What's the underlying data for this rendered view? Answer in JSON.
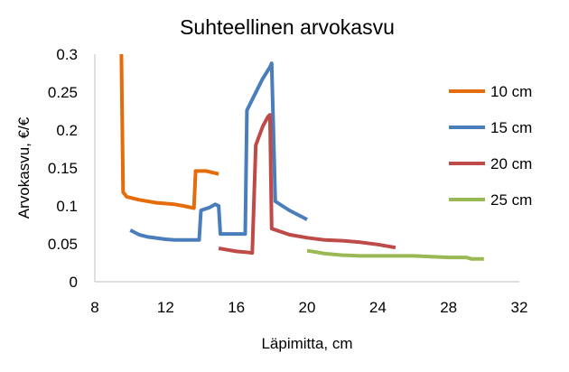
{
  "chart_data": {
    "type": "line",
    "title": "Suhteellinen arvokasvu",
    "xlabel": "Läpimitta, cm",
    "ylabel": "Arvokasvu, €/€",
    "xlim": [
      8,
      32
    ],
    "ylim": [
      0,
      0.3
    ],
    "x_ticks": [
      "8",
      "12",
      "16",
      "20",
      "24",
      "28",
      "32"
    ],
    "y_ticks": [
      "0",
      "0.05",
      "0.1",
      "0.15",
      "0.2",
      "0.25",
      "0.3"
    ],
    "grid": false,
    "legend_position": "right",
    "series": [
      {
        "name": "10 cm",
        "color": "#E46C0A",
        "points": [
          [
            9.5,
            0.3
          ],
          [
            9.6,
            0.118
          ],
          [
            9.8,
            0.112
          ],
          [
            10.5,
            0.108
          ],
          [
            11.5,
            0.104
          ],
          [
            12.5,
            0.102
          ],
          [
            13.0,
            0.1
          ],
          [
            13.6,
            0.097
          ],
          [
            13.7,
            0.146
          ],
          [
            14.3,
            0.146
          ],
          [
            15.0,
            0.142
          ]
        ]
      },
      {
        "name": "15 cm",
        "color": "#4A7EBB",
        "points": [
          [
            10.0,
            0.068
          ],
          [
            10.5,
            0.062
          ],
          [
            11.0,
            0.059
          ],
          [
            12.0,
            0.056
          ],
          [
            12.5,
            0.055
          ],
          [
            13.5,
            0.055
          ],
          [
            13.9,
            0.055
          ],
          [
            14.0,
            0.094
          ],
          [
            14.5,
            0.098
          ],
          [
            14.8,
            0.102
          ],
          [
            15.0,
            0.1
          ],
          [
            15.1,
            0.063
          ],
          [
            15.8,
            0.063
          ],
          [
            16.5,
            0.063
          ],
          [
            16.6,
            0.226
          ],
          [
            17.0,
            0.245
          ],
          [
            17.5,
            0.268
          ],
          [
            17.9,
            0.283
          ],
          [
            18.0,
            0.288
          ],
          [
            18.2,
            0.106
          ],
          [
            19.0,
            0.094
          ],
          [
            20.0,
            0.082
          ]
        ]
      },
      {
        "name": "20 cm",
        "color": "#BE4B48",
        "points": [
          [
            15.0,
            0.044
          ],
          [
            15.5,
            0.042
          ],
          [
            16.0,
            0.04
          ],
          [
            16.5,
            0.039
          ],
          [
            16.9,
            0.038
          ],
          [
            17.1,
            0.18
          ],
          [
            17.5,
            0.205
          ],
          [
            17.8,
            0.218
          ],
          [
            17.9,
            0.22
          ],
          [
            18.0,
            0.07
          ],
          [
            19.0,
            0.062
          ],
          [
            20.0,
            0.058
          ],
          [
            21.0,
            0.055
          ],
          [
            22.0,
            0.054
          ],
          [
            23.0,
            0.052
          ],
          [
            24.0,
            0.049
          ],
          [
            25.0,
            0.045
          ]
        ]
      },
      {
        "name": "25 cm",
        "color": "#98B954",
        "points": [
          [
            20.0,
            0.041
          ],
          [
            20.5,
            0.039
          ],
          [
            21.0,
            0.037
          ],
          [
            22.0,
            0.035
          ],
          [
            23.0,
            0.034
          ],
          [
            24.0,
            0.034
          ],
          [
            25.0,
            0.034
          ],
          [
            26.0,
            0.034
          ],
          [
            27.0,
            0.033
          ],
          [
            28.0,
            0.032
          ],
          [
            29.0,
            0.032
          ],
          [
            29.3,
            0.03
          ],
          [
            30.0,
            0.03
          ]
        ]
      }
    ]
  }
}
